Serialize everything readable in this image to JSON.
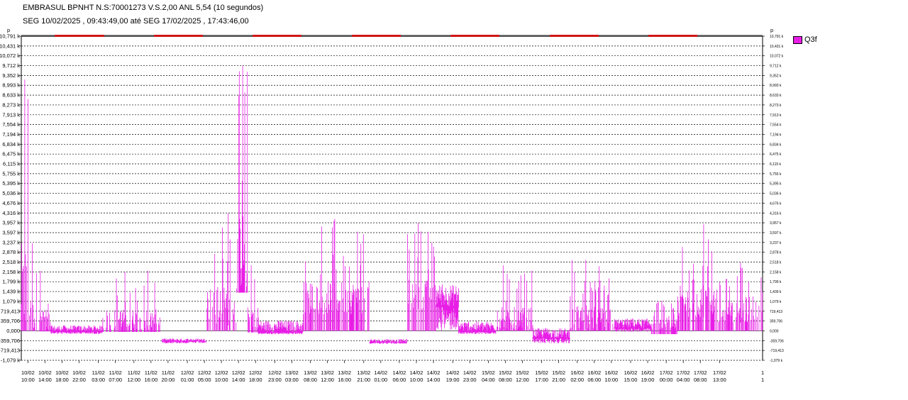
{
  "header": {
    "title_line1": "EMBRASUL BPNHT N.S:70001273  V.S.2,00 ANL 5,54 (10 segundos)",
    "title_line2": "SEG 10/02/2025 , 09:43:49,00 até SEG 17/02/2025 , 17:43:46,00"
  },
  "colors": {
    "series": "#e81ee6",
    "period_bar": "#d11616",
    "grid": "#000000",
    "frame": "#888888"
  },
  "chart_data": {
    "type": "line",
    "grid": true,
    "legend_position": "top-right",
    "axis_unit_left": "p",
    "axis_unit_right": "p",
    "ylim": [
      -1079.119,
      10791.19
    ],
    "y_ticks": [
      -1079.119,
      -719.413,
      -359.706,
      0,
      359.706,
      719.413,
      1079.119,
      1438.825,
      1798.532,
      2158.238,
      2517.944,
      2877.651,
      3237.357,
      3597.063,
      3956.77,
      4316.476,
      4676.182,
      5035.889,
      5395.595,
      5755.301,
      6115.008,
      6474.714,
      6834.42,
      7194.127,
      7553.833,
      7913.539,
      8273.246,
      8632.952,
      8992.658,
      9352.365,
      9712.071,
      10071.777,
      10431.484,
      10791.19
    ],
    "y_tick_labels": [
      "-1,079 k",
      "-719,413",
      "-359,706",
      "0,000",
      "359,706",
      "719,413",
      "1,079 k",
      "1,439 k",
      "1,799 k",
      "2,158 k",
      "2,518 k",
      "2,878 k",
      "3,237 k",
      "3,597 k",
      "3,957 k",
      "4,316 k",
      "4,676 k",
      "5,036 k",
      "5,395 k",
      "5,755 k",
      "6,115 k",
      "6,475 k",
      "6,834 k",
      "7,194 k",
      "7,554 k",
      "7,913 k",
      "8,273 k",
      "8,633 k",
      "8,993 k",
      "9,352 k",
      "9,712 k",
      "10,072 k",
      "10,431 k",
      "10,791 k"
    ],
    "x_tick_labels": [
      [
        "10/02",
        "10:00"
      ],
      [
        "10/02",
        "14:00"
      ],
      [
        "10/02",
        "18:00"
      ],
      [
        "10/02",
        "22:00"
      ],
      [
        "11/02",
        "03:00"
      ],
      [
        "11/02",
        "07:00"
      ],
      [
        "11/02",
        "12:00"
      ],
      [
        "11/02",
        "16:00"
      ],
      [
        "11/02",
        "20:00"
      ],
      [
        "12/02",
        "01:00"
      ],
      [
        "12/02",
        "05:00"
      ],
      [
        "12/02",
        "10:00"
      ],
      [
        "12/02",
        "14:00"
      ],
      [
        "12/02",
        "18:00"
      ],
      [
        "12/02",
        "23:00"
      ],
      [
        "13/02",
        "03:00"
      ],
      [
        "13/02",
        "08:00"
      ],
      [
        "13/02",
        "12:00"
      ],
      [
        "13/02",
        "16:00"
      ],
      [
        "13/02",
        "21:00"
      ],
      [
        "14/02",
        "01:00"
      ],
      [
        "14/02",
        "06:00"
      ],
      [
        "14/02",
        "10:00"
      ],
      [
        "14/02",
        "14:00"
      ],
      [
        "14/02",
        "19:00"
      ],
      [
        "14/02",
        "23:00"
      ],
      [
        "15/02",
        "04:00"
      ],
      [
        "15/02",
        "08:00"
      ],
      [
        "15/02",
        "12:00"
      ],
      [
        "15/02",
        "17:00"
      ],
      [
        "15/02",
        "21:00"
      ],
      [
        "16/02",
        "02:00"
      ],
      [
        "16/02",
        "06:00"
      ],
      [
        "16/02",
        "10:00"
      ],
      [
        "16/02",
        "15:00"
      ],
      [
        "16/02",
        "19:00"
      ],
      [
        "17/02",
        "00:00"
      ],
      [
        "17/02",
        "04:00"
      ],
      [
        "17/02",
        "08:00"
      ],
      [
        "17/02",
        "13:00"
      ]
    ],
    "x_tick_fracs": [
      0.009,
      0.032,
      0.055,
      0.078,
      0.104,
      0.127,
      0.152,
      0.175,
      0.198,
      0.224,
      0.247,
      0.27,
      0.293,
      0.316,
      0.342,
      0.365,
      0.39,
      0.413,
      0.436,
      0.462,
      0.485,
      0.51,
      0.533,
      0.556,
      0.582,
      0.605,
      0.63,
      0.653,
      0.676,
      0.702,
      0.725,
      0.75,
      0.773,
      0.796,
      0.822,
      0.845,
      0.87,
      0.893,
      0.916,
      0.942
    ],
    "series": [
      {
        "name": "Q3f",
        "x_range": [
          "10/02/2025 09:43:49",
          "17/02/2025 17:43:46"
        ],
        "segments": [
          {
            "from": 0.0,
            "to": 0.012,
            "base": 0,
            "hi": 9200,
            "lo": 0
          },
          {
            "from": 0.012,
            "to": 0.022,
            "base": 0,
            "hi": 3200,
            "lo": 0
          },
          {
            "from": 0.022,
            "to": 0.04,
            "base": 0,
            "hi": 2200,
            "lo": -20
          },
          {
            "from": 0.04,
            "to": 0.11,
            "base": -30,
            "hi": 200,
            "lo": -120
          },
          {
            "from": 0.11,
            "to": 0.19,
            "base": 40,
            "hi": 2200,
            "lo": -40
          },
          {
            "from": 0.19,
            "to": 0.25,
            "base": -380,
            "hi": -280,
            "lo": -460
          },
          {
            "from": 0.25,
            "to": 0.29,
            "base": 200,
            "hi": 4300,
            "lo": 0
          },
          {
            "from": 0.29,
            "to": 0.305,
            "base": 1500,
            "hi": 9700,
            "lo": 1400
          },
          {
            "from": 0.305,
            "to": 0.32,
            "base": 100,
            "hi": 2400,
            "lo": -60
          },
          {
            "from": 0.32,
            "to": 0.38,
            "base": -60,
            "hi": 380,
            "lo": -130
          },
          {
            "from": 0.38,
            "to": 0.47,
            "base": 600,
            "hi": 4100,
            "lo": 0
          },
          {
            "from": 0.47,
            "to": 0.52,
            "base": -420,
            "hi": -300,
            "lo": -480
          },
          {
            "from": 0.52,
            "to": 0.56,
            "base": 800,
            "hi": 3950,
            "lo": 0
          },
          {
            "from": 0.56,
            "to": 0.59,
            "base": 900,
            "hi": 1700,
            "lo": 0
          },
          {
            "from": 0.59,
            "to": 0.64,
            "base": -40,
            "hi": 350,
            "lo": -120
          },
          {
            "from": 0.64,
            "to": 0.69,
            "base": 60,
            "hi": 2400,
            "lo": 0
          },
          {
            "from": 0.69,
            "to": 0.74,
            "base": -260,
            "hi": 100,
            "lo": -460
          },
          {
            "from": 0.74,
            "to": 0.8,
            "base": 30,
            "hi": 2600,
            "lo": 0
          },
          {
            "from": 0.8,
            "to": 0.85,
            "base": 100,
            "hi": 450,
            "lo": -40
          },
          {
            "from": 0.85,
            "to": 0.885,
            "base": 60,
            "hi": 1100,
            "lo": -120
          },
          {
            "from": 0.885,
            "to": 0.94,
            "base": 500,
            "hi": 3900,
            "lo": 0
          },
          {
            "from": 0.94,
            "to": 1.0,
            "base": 300,
            "hi": 2500,
            "lo": 0
          }
        ]
      }
    ],
    "period_bars": [
      [
        0.045,
        0.112
      ],
      [
        0.179,
        0.245
      ],
      [
        0.312,
        0.378
      ],
      [
        0.446,
        0.512
      ],
      [
        0.579,
        0.645
      ],
      [
        0.713,
        0.779
      ],
      [
        0.846,
        0.912
      ]
    ]
  },
  "legend": {
    "label": "Q3f"
  }
}
